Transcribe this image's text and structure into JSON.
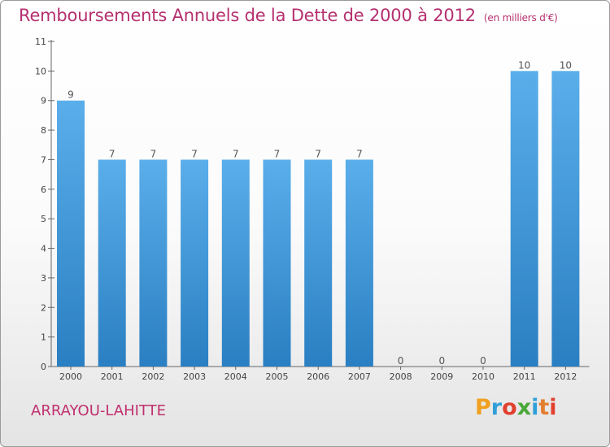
{
  "chart_data": {
    "type": "bar",
    "title": "Remboursements Annuels de la Dette de 2000 à 2012",
    "subtitle": "(en milliers d'€)",
    "categories": [
      "2000",
      "2001",
      "2002",
      "2003",
      "2004",
      "2005",
      "2006",
      "2007",
      "2008",
      "2009",
      "2010",
      "2011",
      "2012"
    ],
    "values": [
      9,
      7,
      7,
      7,
      7,
      7,
      7,
      7,
      0,
      0,
      0,
      10,
      10
    ],
    "data_labels": [
      "9",
      "7",
      "7",
      "7",
      "7",
      "7",
      "7",
      "7",
      "0",
      "0",
      "0",
      "10",
      "10"
    ],
    "y_ticks": [
      "0",
      "1",
      "2",
      "3",
      "4",
      "5",
      "6",
      "7",
      "8",
      "9",
      "10",
      "11"
    ],
    "ylim": [
      0,
      11
    ],
    "grid": false,
    "bar_color": "#4a9fdf"
  },
  "footer": {
    "city": "ARRAYOU-LAHITTE",
    "logo": [
      "P",
      "r",
      "o",
      "x",
      "i",
      "t",
      "i"
    ]
  }
}
